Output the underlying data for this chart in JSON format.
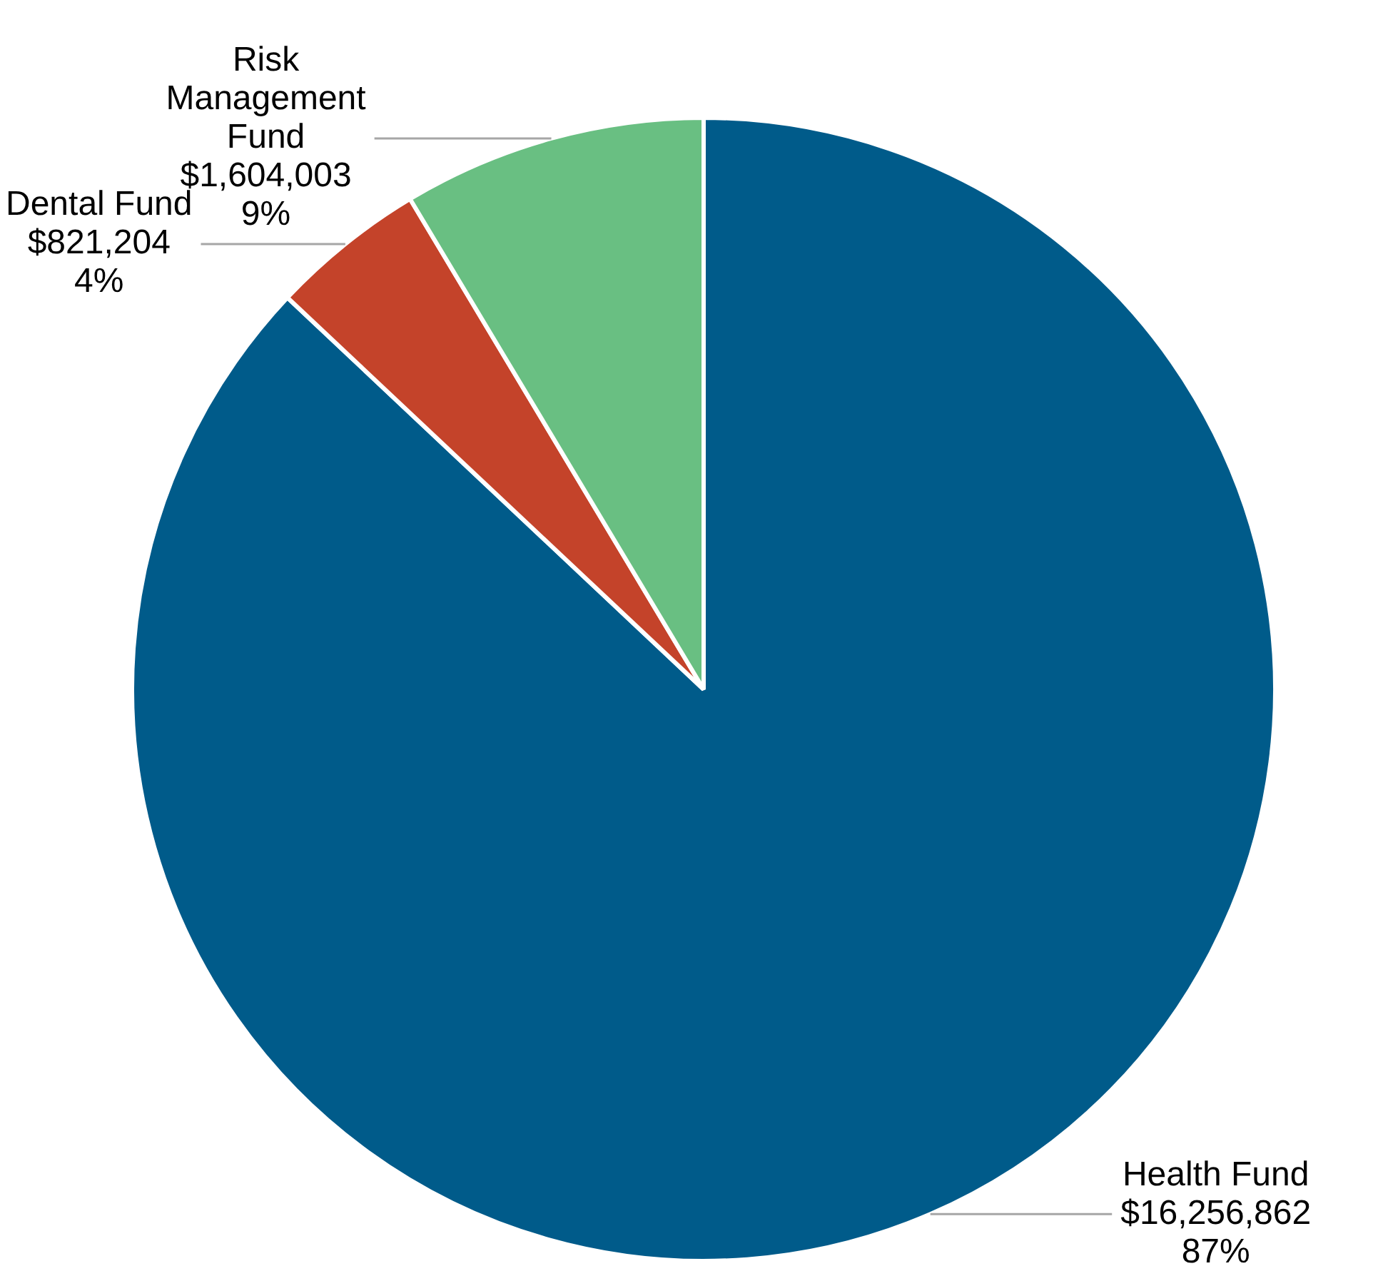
{
  "chart_data": {
    "type": "pie",
    "categories": [
      "Health Fund",
      "Dental Fund",
      "Risk Management Fund"
    ],
    "values": [
      16256862,
      821204,
      1604003
    ],
    "colors": [
      "#005b8a",
      "#c4432a",
      "#69bf82"
    ],
    "value_labels": [
      "$16,256,862\n87%",
      "$821,204\n4%",
      "$1,604,003\n9%"
    ],
    "legend": false
  }
}
